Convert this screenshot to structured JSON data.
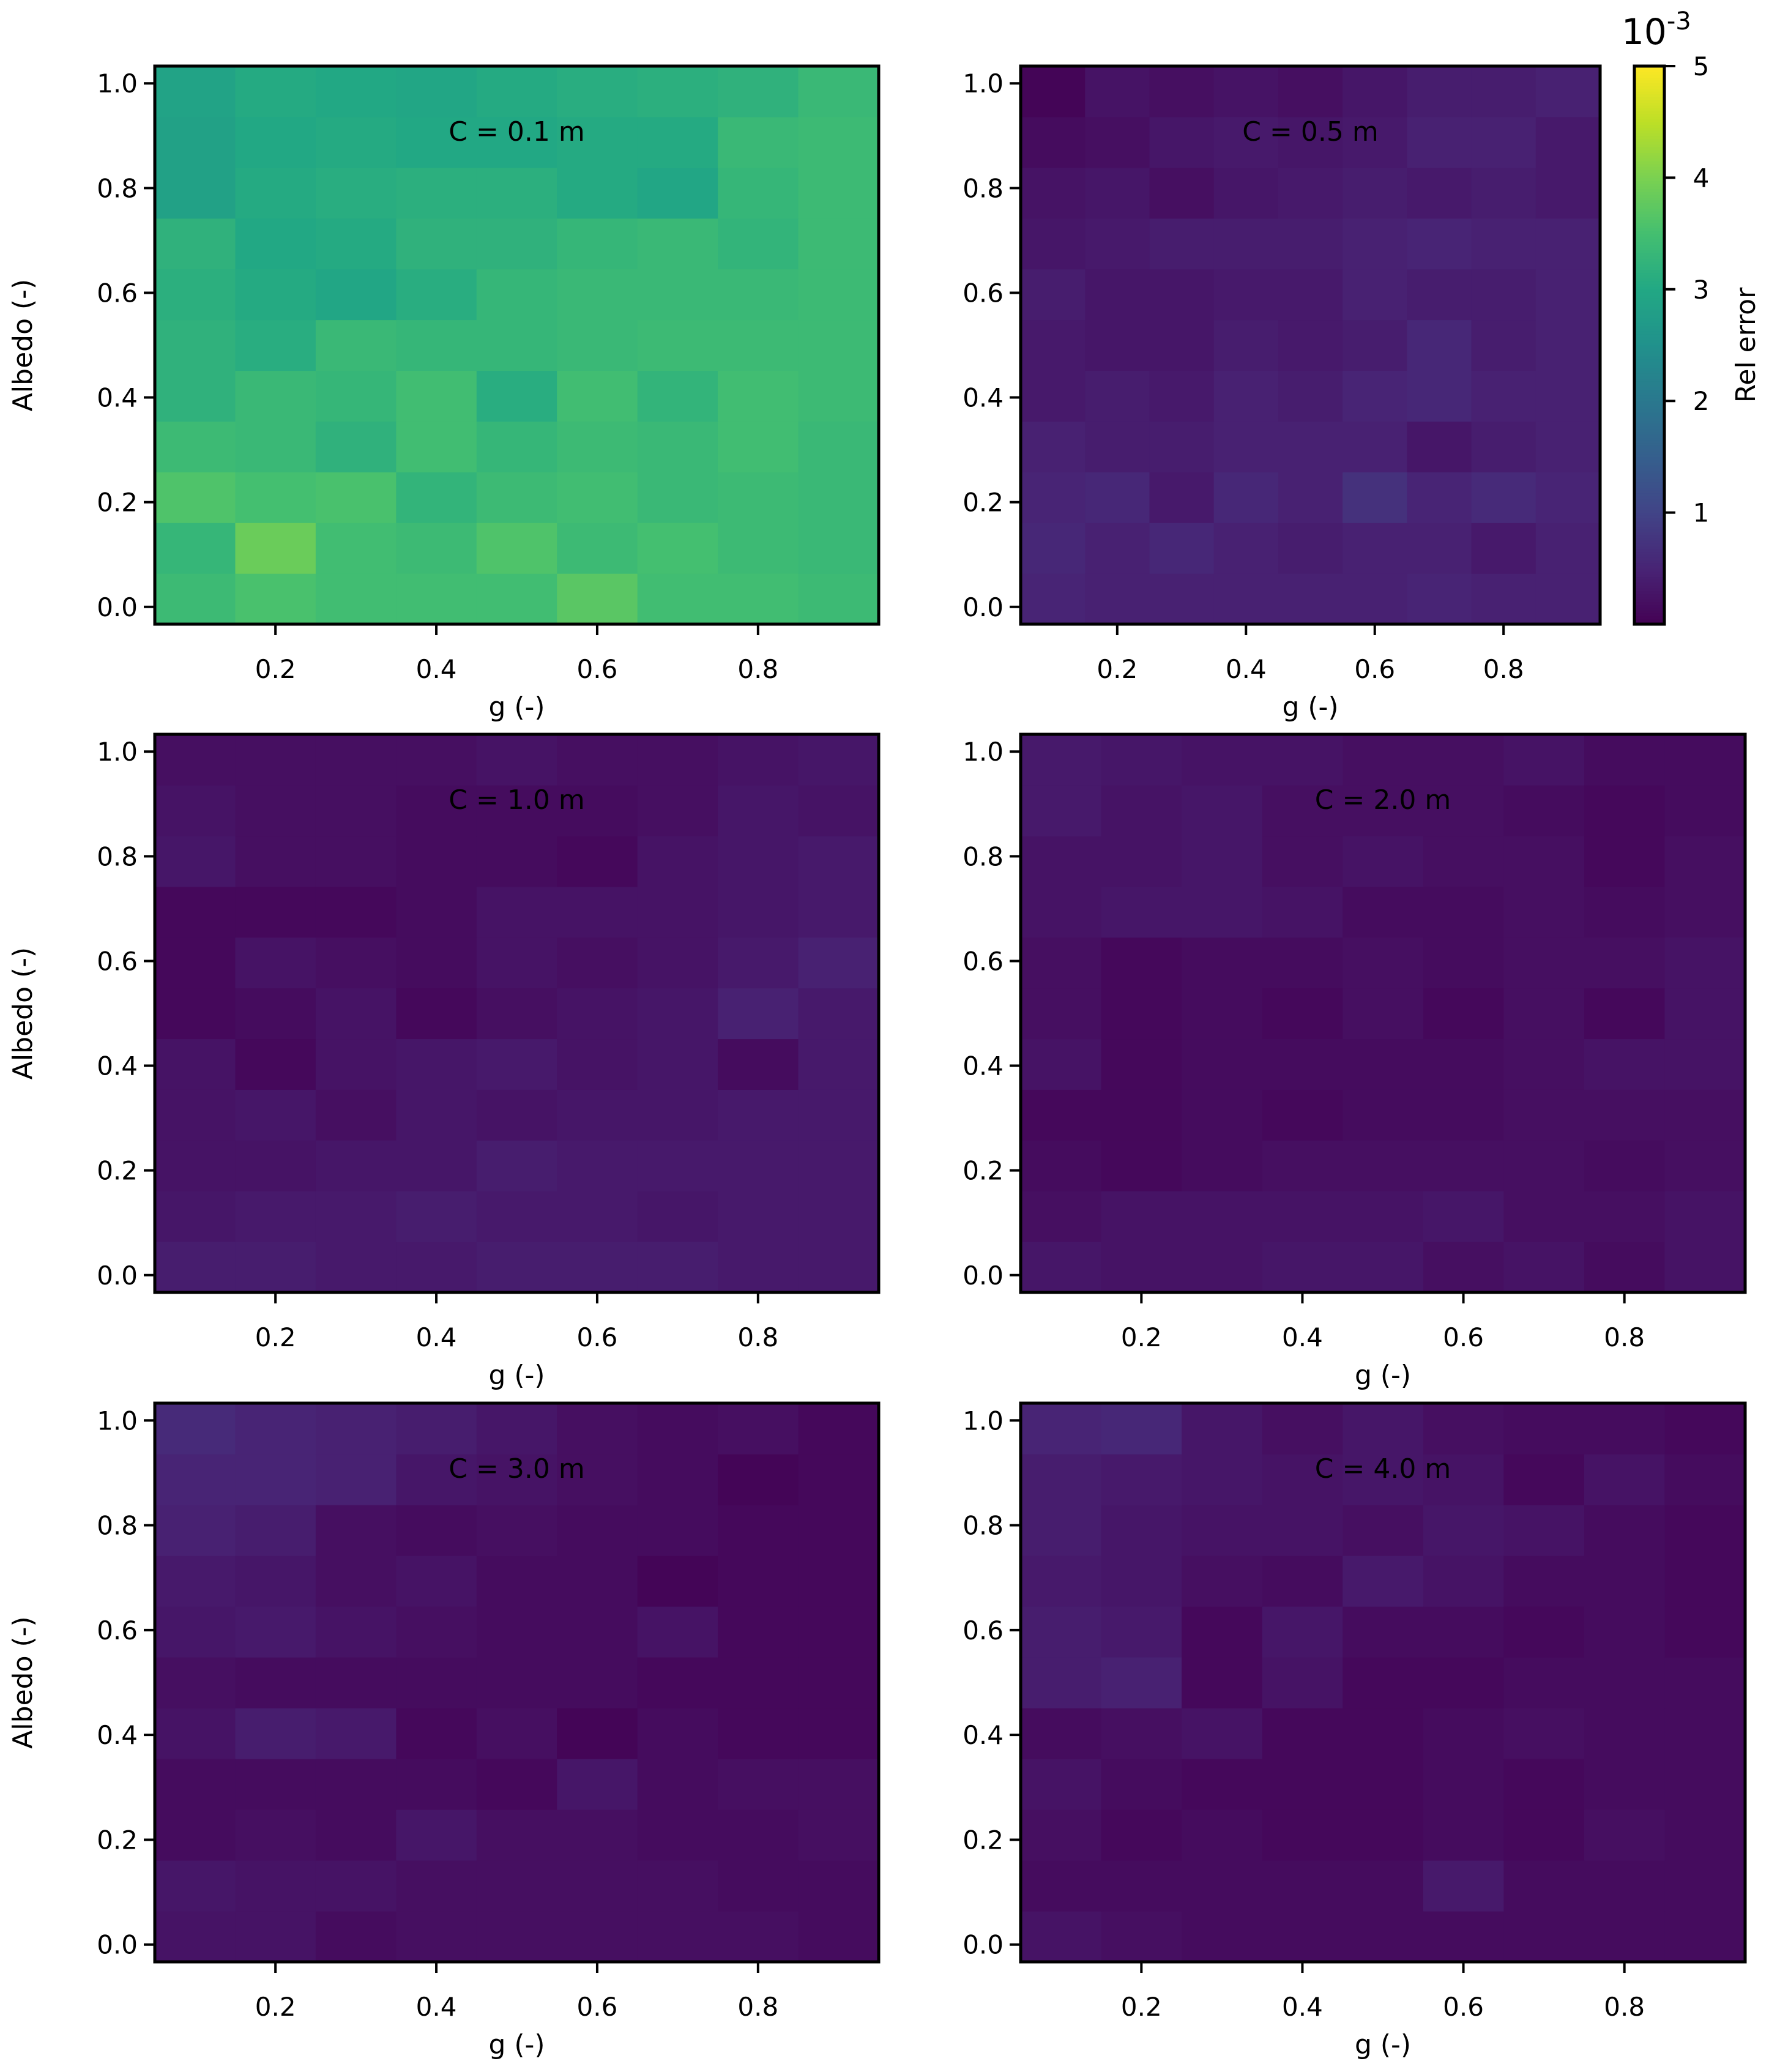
{
  "chart_data": {
    "type": "heatmap",
    "x_ticks": [
      "0.2",
      "0.4",
      "0.6",
      "0.8"
    ],
    "y_ticks": [
      "0.0",
      "0.2",
      "0.4",
      "0.6",
      "0.8",
      "1.0"
    ],
    "x_range": [
      0.05,
      0.95
    ],
    "y_range": [
      -0.033,
      1.033
    ],
    "x_centers": [
      0.1,
      0.2,
      0.3,
      0.4,
      0.5,
      0.6,
      0.7,
      0.8,
      0.9
    ],
    "y_centers": [
      0.0,
      0.1,
      0.2,
      0.3,
      0.4,
      0.5,
      0.6,
      0.7,
      0.8,
      0.9,
      1.0
    ],
    "xlabel": "g (-)",
    "ylabel": "Albedo (-)",
    "colormap": "viridis",
    "colorbar": {
      "label": "Rel error",
      "min": 0.0,
      "max": 5.0,
      "ticks": [
        "1",
        "2",
        "3",
        "4",
        "5"
      ],
      "tick_values": [
        1,
        2,
        3,
        4,
        5
      ],
      "exponent": "10",
      "exponent_power": "-3"
    },
    "panels": [
      {
        "title": "C = 0.1 m",
        "values": [
          [
            3.4,
            3.55,
            3.45,
            3.45,
            3.45,
            3.7,
            3.45,
            3.45,
            3.4
          ],
          [
            3.3,
            3.85,
            3.45,
            3.4,
            3.6,
            3.4,
            3.5,
            3.4,
            3.35
          ],
          [
            3.6,
            3.5,
            3.55,
            3.25,
            3.4,
            3.45,
            3.35,
            3.4,
            3.35
          ],
          [
            3.4,
            3.35,
            3.2,
            3.45,
            3.3,
            3.4,
            3.35,
            3.45,
            3.35
          ],
          [
            3.2,
            3.35,
            3.3,
            3.45,
            3.1,
            3.45,
            3.25,
            3.45,
            3.4
          ],
          [
            3.2,
            3.1,
            3.35,
            3.3,
            3.3,
            3.35,
            3.4,
            3.4,
            3.4
          ],
          [
            3.15,
            3.05,
            2.95,
            3.1,
            3.3,
            3.35,
            3.35,
            3.35,
            3.4
          ],
          [
            3.2,
            3.0,
            3.05,
            3.2,
            3.2,
            3.3,
            3.35,
            3.25,
            3.4
          ],
          [
            2.85,
            3.05,
            3.1,
            3.15,
            3.15,
            3.05,
            2.95,
            3.3,
            3.4
          ],
          [
            2.85,
            3.0,
            3.05,
            3.0,
            3.0,
            3.05,
            3.05,
            3.35,
            3.4
          ],
          [
            2.9,
            3.05,
            3.0,
            2.95,
            3.05,
            3.1,
            3.15,
            3.2,
            3.35
          ]
        ]
      },
      {
        "title": "C = 0.5 m",
        "values": [
          [
            0.5,
            0.45,
            0.45,
            0.45,
            0.45,
            0.45,
            0.5,
            0.45,
            0.45
          ],
          [
            0.55,
            0.45,
            0.55,
            0.45,
            0.4,
            0.45,
            0.45,
            0.35,
            0.45
          ],
          [
            0.5,
            0.55,
            0.35,
            0.55,
            0.45,
            0.7,
            0.5,
            0.6,
            0.5
          ],
          [
            0.45,
            0.4,
            0.4,
            0.45,
            0.45,
            0.45,
            0.3,
            0.4,
            0.45
          ],
          [
            0.35,
            0.4,
            0.35,
            0.45,
            0.4,
            0.5,
            0.55,
            0.45,
            0.45
          ],
          [
            0.35,
            0.3,
            0.3,
            0.4,
            0.35,
            0.4,
            0.55,
            0.4,
            0.45
          ],
          [
            0.4,
            0.3,
            0.3,
            0.35,
            0.35,
            0.45,
            0.4,
            0.4,
            0.45
          ],
          [
            0.3,
            0.35,
            0.4,
            0.4,
            0.4,
            0.45,
            0.5,
            0.45,
            0.45
          ],
          [
            0.25,
            0.3,
            0.2,
            0.3,
            0.35,
            0.4,
            0.35,
            0.4,
            0.35
          ],
          [
            0.15,
            0.2,
            0.3,
            0.35,
            0.3,
            0.35,
            0.45,
            0.45,
            0.35
          ],
          [
            0.05,
            0.25,
            0.2,
            0.25,
            0.2,
            0.3,
            0.4,
            0.4,
            0.45
          ]
        ]
      },
      {
        "title": "C = 1.0 m",
        "values": [
          [
            0.4,
            0.4,
            0.35,
            0.35,
            0.4,
            0.4,
            0.4,
            0.35,
            0.35
          ],
          [
            0.3,
            0.35,
            0.35,
            0.4,
            0.35,
            0.35,
            0.3,
            0.35,
            0.35
          ],
          [
            0.25,
            0.25,
            0.3,
            0.3,
            0.4,
            0.35,
            0.35,
            0.35,
            0.35
          ],
          [
            0.25,
            0.3,
            0.2,
            0.3,
            0.25,
            0.3,
            0.3,
            0.35,
            0.35
          ],
          [
            0.25,
            0.1,
            0.25,
            0.3,
            0.35,
            0.25,
            0.3,
            0.15,
            0.35
          ],
          [
            0.1,
            0.15,
            0.25,
            0.1,
            0.2,
            0.25,
            0.3,
            0.45,
            0.35
          ],
          [
            0.1,
            0.25,
            0.2,
            0.15,
            0.25,
            0.2,
            0.25,
            0.35,
            0.45
          ],
          [
            0.1,
            0.1,
            0.1,
            0.15,
            0.25,
            0.25,
            0.25,
            0.3,
            0.35
          ],
          [
            0.3,
            0.2,
            0.2,
            0.15,
            0.15,
            0.1,
            0.25,
            0.3,
            0.35
          ],
          [
            0.25,
            0.2,
            0.2,
            0.15,
            0.15,
            0.15,
            0.2,
            0.3,
            0.25
          ],
          [
            0.2,
            0.2,
            0.2,
            0.2,
            0.25,
            0.2,
            0.2,
            0.25,
            0.3
          ]
        ]
      },
      {
        "title": "C = 2.0 m",
        "values": [
          [
            0.3,
            0.25,
            0.25,
            0.3,
            0.3,
            0.2,
            0.25,
            0.15,
            0.25
          ],
          [
            0.2,
            0.25,
            0.25,
            0.25,
            0.25,
            0.3,
            0.2,
            0.2,
            0.25
          ],
          [
            0.15,
            0.1,
            0.15,
            0.2,
            0.2,
            0.2,
            0.2,
            0.15,
            0.2
          ],
          [
            0.1,
            0.1,
            0.15,
            0.1,
            0.15,
            0.15,
            0.2,
            0.2,
            0.2
          ],
          [
            0.25,
            0.1,
            0.15,
            0.15,
            0.15,
            0.15,
            0.2,
            0.25,
            0.25
          ],
          [
            0.2,
            0.1,
            0.15,
            0.1,
            0.2,
            0.1,
            0.2,
            0.1,
            0.25
          ],
          [
            0.2,
            0.1,
            0.15,
            0.15,
            0.2,
            0.15,
            0.2,
            0.2,
            0.25
          ],
          [
            0.25,
            0.3,
            0.3,
            0.25,
            0.15,
            0.15,
            0.2,
            0.15,
            0.2
          ],
          [
            0.25,
            0.25,
            0.3,
            0.2,
            0.25,
            0.2,
            0.2,
            0.1,
            0.2
          ],
          [
            0.35,
            0.25,
            0.3,
            0.2,
            0.2,
            0.2,
            0.15,
            0.1,
            0.15
          ],
          [
            0.35,
            0.3,
            0.25,
            0.25,
            0.2,
            0.2,
            0.25,
            0.15,
            0.15
          ]
        ]
      },
      {
        "title": "C = 3.0 m",
        "values": [
          [
            0.25,
            0.25,
            0.15,
            0.2,
            0.2,
            0.2,
            0.2,
            0.2,
            0.15
          ],
          [
            0.3,
            0.25,
            0.25,
            0.2,
            0.2,
            0.2,
            0.2,
            0.15,
            0.15
          ],
          [
            0.15,
            0.2,
            0.15,
            0.3,
            0.2,
            0.2,
            0.15,
            0.15,
            0.2
          ],
          [
            0.15,
            0.15,
            0.15,
            0.15,
            0.1,
            0.3,
            0.15,
            0.2,
            0.2
          ],
          [
            0.25,
            0.4,
            0.35,
            0.1,
            0.2,
            0.05,
            0.15,
            0.1,
            0.1
          ],
          [
            0.2,
            0.15,
            0.15,
            0.15,
            0.15,
            0.15,
            0.1,
            0.1,
            0.1
          ],
          [
            0.3,
            0.35,
            0.25,
            0.2,
            0.15,
            0.15,
            0.25,
            0.1,
            0.1
          ],
          [
            0.35,
            0.3,
            0.2,
            0.25,
            0.15,
            0.15,
            0.05,
            0.1,
            0.1
          ],
          [
            0.45,
            0.4,
            0.2,
            0.15,
            0.2,
            0.15,
            0.15,
            0.1,
            0.1
          ],
          [
            0.5,
            0.5,
            0.45,
            0.3,
            0.25,
            0.2,
            0.15,
            0.05,
            0.1
          ],
          [
            0.6,
            0.5,
            0.45,
            0.4,
            0.3,
            0.2,
            0.15,
            0.2,
            0.1
          ]
        ]
      },
      {
        "title": "C = 4.0 m",
        "values": [
          [
            0.25,
            0.2,
            0.15,
            0.15,
            0.15,
            0.15,
            0.15,
            0.15,
            0.15
          ],
          [
            0.15,
            0.15,
            0.15,
            0.15,
            0.15,
            0.35,
            0.15,
            0.15,
            0.15
          ],
          [
            0.2,
            0.1,
            0.15,
            0.1,
            0.1,
            0.15,
            0.1,
            0.2,
            0.15
          ],
          [
            0.25,
            0.15,
            0.1,
            0.1,
            0.1,
            0.15,
            0.1,
            0.15,
            0.15
          ],
          [
            0.15,
            0.2,
            0.25,
            0.1,
            0.1,
            0.15,
            0.2,
            0.15,
            0.15
          ],
          [
            0.4,
            0.45,
            0.1,
            0.25,
            0.1,
            0.1,
            0.15,
            0.15,
            0.15
          ],
          [
            0.4,
            0.35,
            0.1,
            0.3,
            0.15,
            0.15,
            0.1,
            0.15,
            0.1
          ],
          [
            0.35,
            0.3,
            0.2,
            0.15,
            0.35,
            0.25,
            0.15,
            0.15,
            0.1
          ],
          [
            0.4,
            0.3,
            0.25,
            0.25,
            0.2,
            0.3,
            0.25,
            0.15,
            0.1
          ],
          [
            0.4,
            0.35,
            0.3,
            0.25,
            0.3,
            0.25,
            0.1,
            0.25,
            0.15
          ],
          [
            0.5,
            0.55,
            0.3,
            0.2,
            0.3,
            0.2,
            0.15,
            0.15,
            0.1
          ]
        ]
      }
    ]
  }
}
